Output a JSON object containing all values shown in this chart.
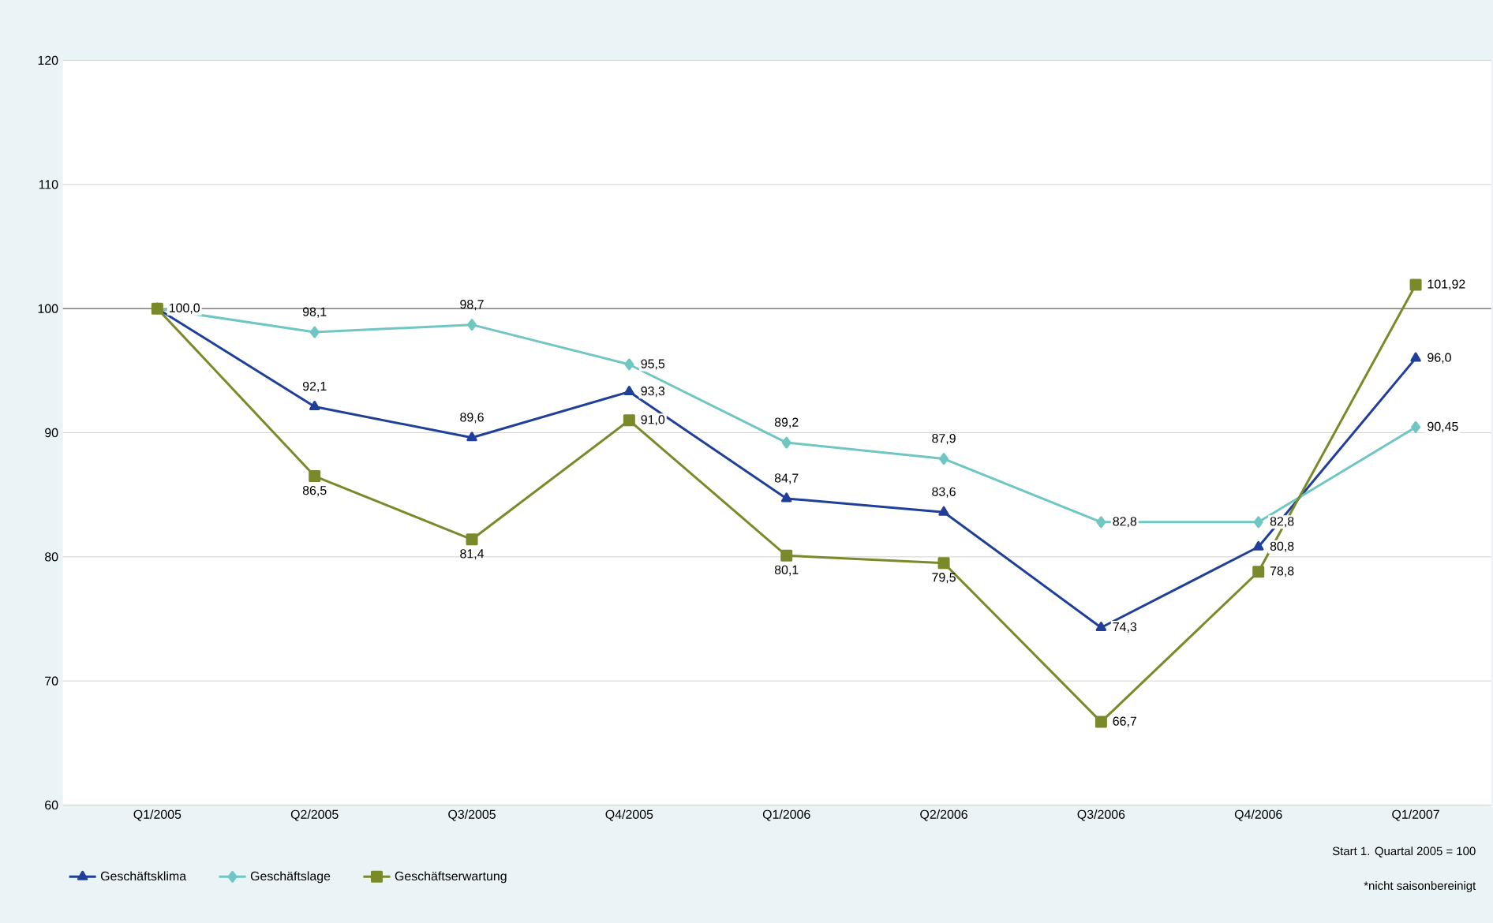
{
  "chart_data": {
    "type": "line",
    "categories": [
      "Q1/2005",
      "Q2/2005",
      "Q3/2005",
      "Q4/2005",
      "Q1/2006",
      "Q2/2006",
      "Q3/2006",
      "Q4/2006",
      "Q1/2007"
    ],
    "series": [
      {
        "name": "Geschäftsklima",
        "color": "#1f3f99",
        "marker": "triangle",
        "values": [
          100.0,
          92.1,
          89.6,
          93.3,
          84.7,
          83.6,
          74.3,
          80.8,
          96.0
        ],
        "value_labels": [
          null,
          "92,1",
          "89,6",
          "93,3",
          "84,7",
          "83,6",
          "74,3",
          "80,8",
          "96,0"
        ]
      },
      {
        "name": "Geschäftslage",
        "color": "#6fc6c2",
        "marker": "diamond",
        "values": [
          100.0,
          98.1,
          98.7,
          95.5,
          89.2,
          87.9,
          82.8,
          82.8,
          90.45
        ],
        "value_labels": [
          "100,0",
          "98,1",
          "98,7",
          "95,5",
          "89,2",
          "87,9",
          "82,8",
          "82,8",
          "90,45"
        ]
      },
      {
        "name": "Geschäftserwartung",
        "color": "#7a8a2a",
        "marker": "square",
        "values": [
          100.0,
          86.5,
          81.4,
          91.0,
          80.1,
          79.5,
          66.7,
          78.8,
          101.92
        ],
        "value_labels": [
          null,
          "86,5",
          "81,4",
          "91,0",
          "80,1",
          "79,5",
          "66,7",
          "78,8",
          "101,92"
        ]
      }
    ],
    "ylim": [
      60,
      120
    ],
    "yticks": [
      60,
      70,
      80,
      90,
      100,
      110,
      120
    ],
    "grid": "y",
    "legend": "bottom left",
    "ref_lines": [
      {
        "axis": "y",
        "value": 100,
        "color": "#808080"
      }
    ],
    "annotations": [
      "Start 1. Quartal 2005 = 100",
      "*nicht saisonbereinigt"
    ]
  }
}
